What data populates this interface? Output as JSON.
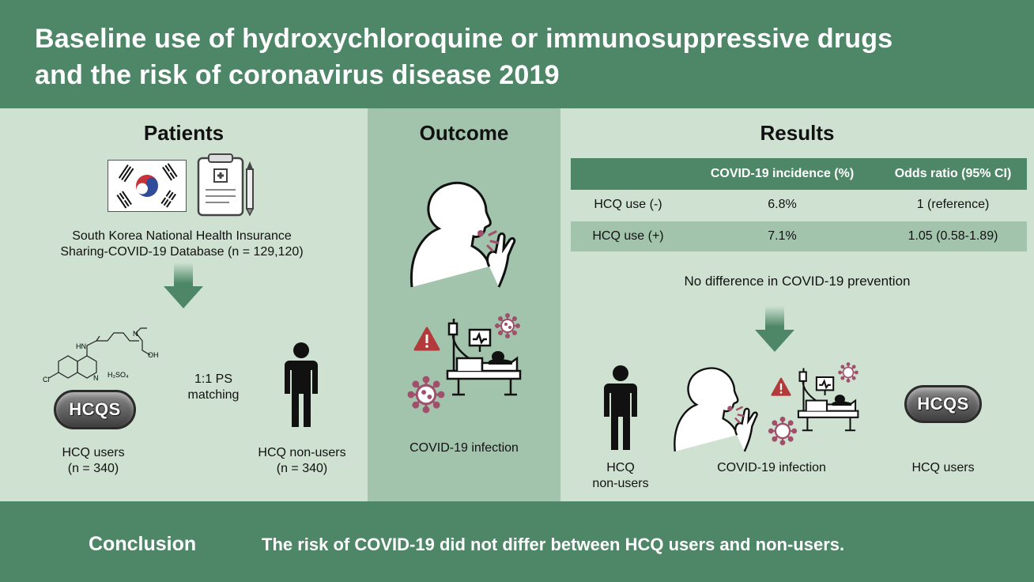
{
  "header": {
    "title_line1": "Baseline use of hydroxychloroquine or immunosuppressive drugs",
    "title_line2": "and the risk of coronavirus disease 2019"
  },
  "patients": {
    "title": "Patients",
    "database_line1": "South Korea National Health Insurance",
    "database_line2": "Sharing-COVID-19 Database (n = 129,120)",
    "matching_line1": "1:1 PS",
    "matching_line2": "matching",
    "users_label": "HCQ users",
    "users_n": "(n = 340)",
    "nonusers_label": "HCQ non-users",
    "nonusers_n": "(n = 340)",
    "pill_label": "HCQS",
    "chem_cl": "Cl",
    "chem_n": "N",
    "chem_hn": "HN",
    "chem_n2": "N",
    "chem_oh": "OH",
    "chem_salt": "H₂SO₄"
  },
  "outcome": {
    "title": "Outcome",
    "infection_label": "COVID-19 infection"
  },
  "results": {
    "title": "Results",
    "table": {
      "headers": [
        "",
        "COVID-19 incidence (%)",
        "Odds ratio (95% CI)"
      ],
      "rows": [
        [
          "HCQ use (-)",
          "6.8%",
          "1 (reference)"
        ],
        [
          "HCQ use (+)",
          "7.1%",
          "1.05 (0.58-1.89)"
        ]
      ]
    },
    "statement": "No difference in COVID-19 prevention",
    "nonusers_line1": "HCQ",
    "nonusers_line2": "non-users",
    "infection_label": "COVID-19 infection",
    "users_label": "HCQ users",
    "pill_label": "HCQS"
  },
  "footer": {
    "label": "Conclusion",
    "text": "The risk of COVID-19 did not differ between HCQ users and non-users."
  },
  "colors": {
    "header_green": "#4e8767",
    "light_green": "#cfe2d2",
    "mid_green": "#a2c4ac",
    "virus": "#a0506a",
    "warning_red": "#b23a3a"
  }
}
